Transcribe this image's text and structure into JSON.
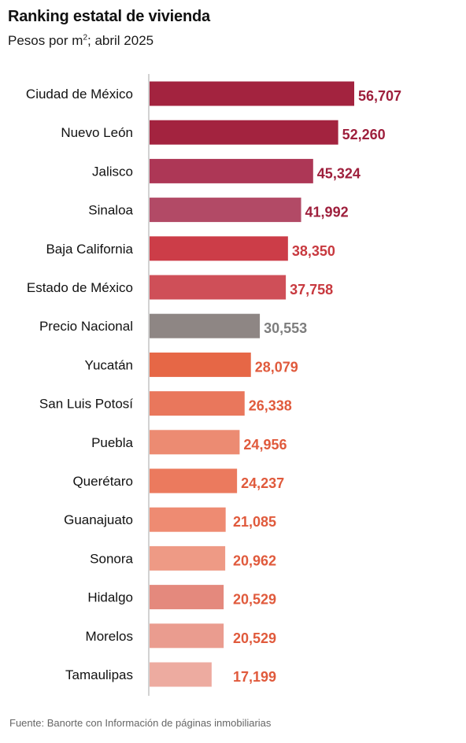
{
  "chart_data": {
    "type": "bar",
    "orientation": "horizontal",
    "title": "Ranking estatal de vivienda",
    "subtitle_prefix": "Pesos por m",
    "subtitle_sup": "2",
    "subtitle_suffix": "; abril 2025",
    "categories": [
      "Ciudad de México",
      "Nuevo León",
      "Jalisco",
      "Sinaloa",
      "Baja California",
      "Estado de México",
      "Precio Nacional",
      "Yucatán",
      "San Luis Potosí",
      "Puebla",
      "Querétaro",
      "Guanajuato",
      "Sonora",
      "Hidalgo",
      "Morelos",
      "Tamaulipas"
    ],
    "values": [
      56707,
      52260,
      45324,
      41992,
      38350,
      37758,
      30553,
      28079,
      26338,
      24956,
      24237,
      21085,
      20962,
      20529,
      20529,
      17199
    ],
    "value_labels": [
      "56,707",
      "52,260",
      "45,324",
      "41,992",
      "38,350",
      "37,758",
      "30,553",
      "28,079",
      "26,338",
      "24,956",
      "24,237",
      "21,085",
      "20,962",
      "20,529",
      "20,529",
      "17,199"
    ],
    "bar_colors": [
      "#a3233f",
      "#a3233f",
      "#ad3756",
      "#b24a66",
      "#cc3d48",
      "#cf4f58",
      "#8e8684",
      "#e66746",
      "#e9775c",
      "#ec8b72",
      "#eb7a5e",
      "#ee8b72",
      "#ee9a85",
      "#e4897d",
      "#ea9c8f",
      "#edaba0"
    ],
    "label_colors": [
      "#9e1f3c",
      "#9e1f3c",
      "#9e1f3c",
      "#9e1f3c",
      "#c8393f",
      "#c8393f",
      "#7d7d7d",
      "#e05a3c",
      "#e05a3c",
      "#e05a3c",
      "#e05a3c",
      "#e05a3c",
      "#e05a3c",
      "#e05a3c",
      "#e05a3c",
      "#e05a3c"
    ],
    "xlim": [
      0,
      60000
    ],
    "grid": false,
    "legend": "none"
  },
  "source": "Fuente: Banorte con Información de páginas inmobiliarias"
}
